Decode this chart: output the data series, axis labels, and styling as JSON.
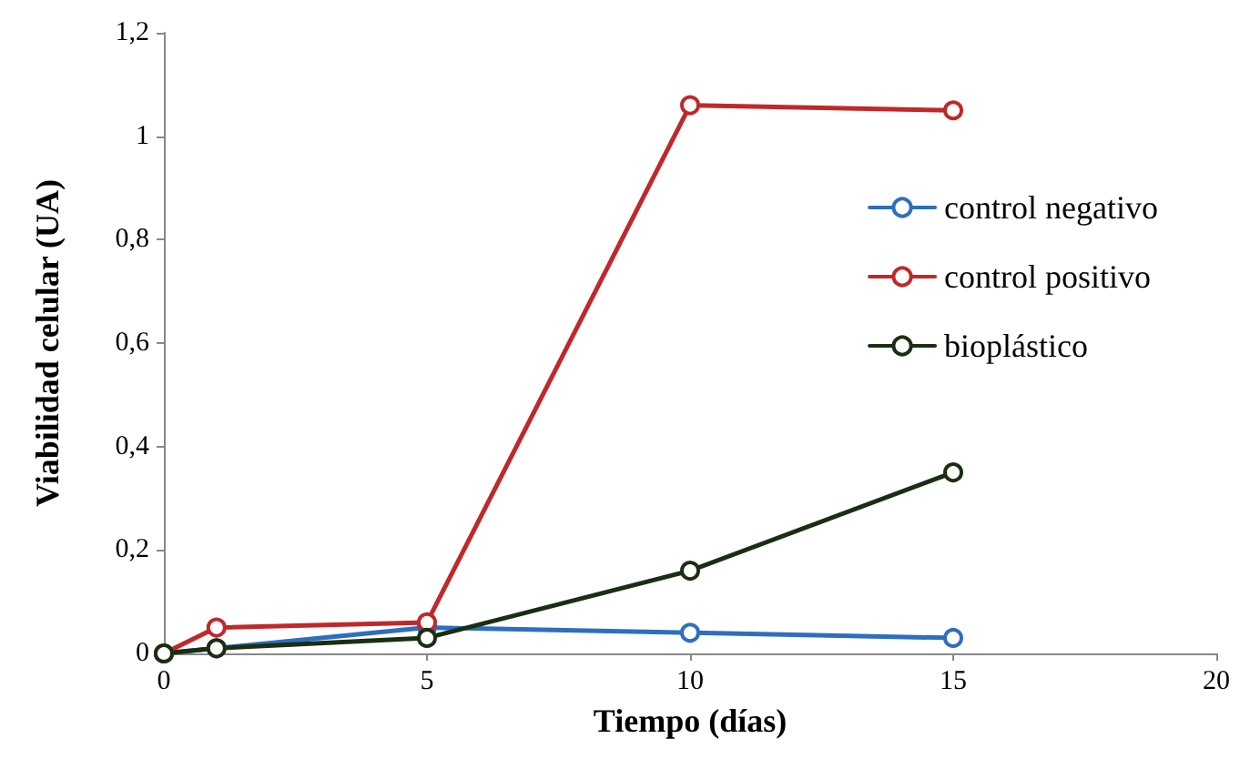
{
  "chart_data": {
    "type": "line",
    "xlabel": "Tiempo (días)",
    "ylabel": "Viabilidad celular (UA)",
    "x": [
      0,
      1,
      5,
      10,
      15
    ],
    "series": [
      {
        "name": "control negativo",
        "color": "#2e6ebf",
        "values": [
          0,
          0.01,
          0.05,
          0.04,
          0.03
        ]
      },
      {
        "name": "control positivo",
        "color": "#c0282a",
        "values": [
          0,
          0.05,
          0.06,
          1.06,
          1.05
        ]
      },
      {
        "name": "bioplástico",
        "color": "#1a2e12",
        "values": [
          0,
          0.01,
          0.03,
          0.16,
          0.35
        ]
      }
    ],
    "xlim": [
      0,
      20
    ],
    "xticks": [
      0,
      5,
      10,
      15,
      20
    ],
    "ylim": [
      0,
      1.2
    ],
    "yticks": [
      0,
      {
        "value": 0.2,
        "label": "0,2"
      },
      {
        "value": 0.4,
        "label": "0,4"
      },
      {
        "value": 0.6,
        "label": "0,6"
      },
      {
        "value": 0.8,
        "label": "0,8"
      },
      1,
      {
        "value": 1.2,
        "label": "1,2"
      }
    ],
    "grid": false,
    "legend": "right",
    "marker": "circle",
    "line_style": "solid"
  }
}
